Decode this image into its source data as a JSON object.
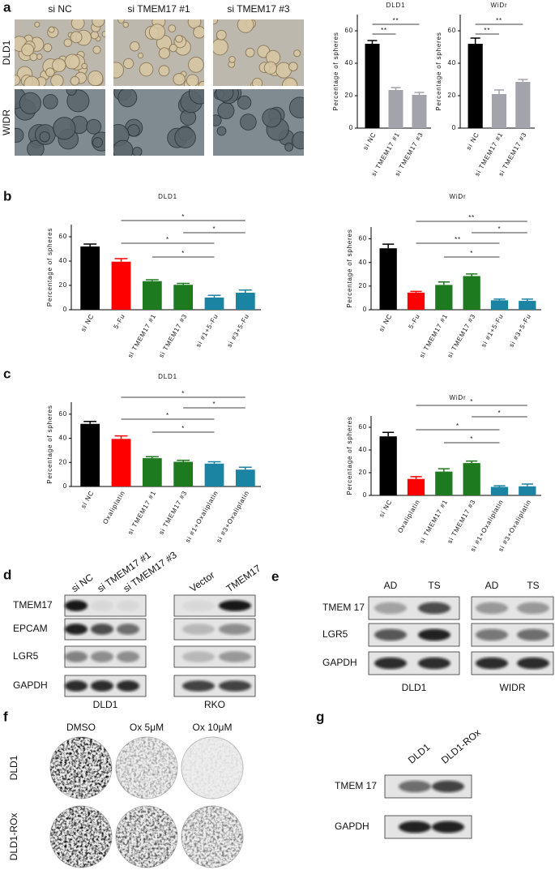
{
  "panel_labels": [
    "a",
    "b",
    "c",
    "d",
    "e",
    "f",
    "g"
  ],
  "panel_a_images": {
    "columns": [
      "si NC",
      "si TMEM17 #1",
      "si TMEM17 #3"
    ],
    "rows": [
      "DLD1",
      "WIDR"
    ]
  },
  "chart_data": [
    {
      "type": "bar",
      "title": "DLD1",
      "y_label": "Percentage of spheres",
      "categories": [
        "si NC",
        "si TMEM17 #1",
        "si TMEM17 #3"
      ],
      "values": [
        52,
        23.5,
        20.5
      ],
      "errors": [
        2,
        1.5,
        1.5
      ],
      "colors": [
        "#000000",
        "#a3a3ab",
        "#a3a3ab"
      ],
      "ylim": [
        0,
        70
      ],
      "yticks": [
        0,
        20,
        40,
        60
      ],
      "significance": [
        "**",
        "**"
      ]
    },
    {
      "type": "bar",
      "title": "WiDr",
      "y_label": "Percentage of spheres",
      "categories": [
        "si NC",
        "si TMEM17 #1",
        "si TMEM17 #3"
      ],
      "values": [
        52,
        21,
        28.5
      ],
      "errors": [
        3.5,
        2.5,
        1.5
      ],
      "colors": [
        "#000000",
        "#a3a3ab",
        "#a3a3ab"
      ],
      "ylim": [
        0,
        70
      ],
      "yticks": [
        0,
        20,
        40,
        60
      ],
      "significance": [
        "**",
        "**"
      ]
    },
    {
      "type": "bar",
      "title": "DLD1",
      "y_label": "Percentage of spheres",
      "categories": [
        "si NC",
        "5-Fu",
        "si TMEM17 #1",
        "si TMEM17 #3",
        "si #1+5-Fu",
        "si #3+5-Fu"
      ],
      "values": [
        52,
        39.5,
        23.5,
        20.5,
        10,
        14
      ],
      "errors": [
        2,
        2.5,
        1.2,
        1.2,
        1.8,
        2.2
      ],
      "colors": [
        "#000000",
        "#ff0000",
        "#1e7a1e",
        "#1e7a1e",
        "#1b84a3",
        "#1b84a3"
      ],
      "ylim": [
        0,
        70
      ],
      "yticks": [
        0,
        20,
        40,
        60
      ],
      "significance": [
        "*",
        "*",
        "*",
        "*"
      ]
    },
    {
      "type": "bar",
      "title": "WiDr",
      "y_label": "Percentage of spheres",
      "categories": [
        "si NC",
        "5-Fu",
        "si TMEM17 #1",
        "si TMEM17 #3",
        "si #1+5-Fu",
        "si #3+5-Fu"
      ],
      "values": [
        52,
        14.5,
        21,
        28.5,
        8,
        7.5
      ],
      "errors": [
        3.5,
        1,
        2.5,
        1.8,
        1,
        1.5
      ],
      "colors": [
        "#000000",
        "#ff0000",
        "#1e7a1e",
        "#1e7a1e",
        "#1b84a3",
        "#1b84a3"
      ],
      "ylim": [
        0,
        70
      ],
      "yticks": [
        0,
        20,
        40,
        60
      ],
      "significance": [
        "**",
        "*",
        "**",
        "*"
      ]
    },
    {
      "type": "bar",
      "title": "DLD1",
      "y_label": "Percentage of spheres",
      "categories": [
        "si NC",
        "Oxaliplatin",
        "si TMEM17 #1",
        "si TMEM17 #3",
        "si #1+Oxaliplatin",
        "si #3+Oxaliplatin"
      ],
      "values": [
        52,
        39.5,
        23.5,
        20.5,
        19,
        14
      ],
      "errors": [
        2,
        2.5,
        1.2,
        1.2,
        1.5,
        2
      ],
      "colors": [
        "#000000",
        "#ff0000",
        "#1e7a1e",
        "#1e7a1e",
        "#1b84a3",
        "#1b84a3"
      ],
      "ylim": [
        0,
        70
      ],
      "yticks": [
        0,
        20,
        40,
        60
      ],
      "significance": [
        "*",
        "*",
        "*",
        "*"
      ]
    },
    {
      "type": "bar",
      "title": "WiDr",
      "y_label": "Percentage of spheres",
      "categories": [
        "si NC",
        "Oxaliplatin",
        "si TMEM17 #1",
        "si TMEM17 #3",
        "si #1+Oxaliplatin",
        "si #3+Oxaliplatin"
      ],
      "values": [
        52,
        14.5,
        21,
        28.5,
        7.5,
        8
      ],
      "errors": [
        3.5,
        2,
        2.5,
        1.8,
        1,
        2
      ],
      "colors": [
        "#000000",
        "#ff0000",
        "#1e7a1e",
        "#1e7a1e",
        "#1b84a3",
        "#1b84a3"
      ],
      "ylim": [
        0,
        70
      ],
      "yticks": [
        0,
        20,
        40,
        60
      ],
      "significance": [
        "*",
        "*",
        "*",
        "*"
      ]
    }
  ],
  "panel_d": {
    "rows": [
      "TMEM17",
      "EPCAM",
      "LGR5",
      "GAPDH"
    ],
    "blots": [
      {
        "lanes": [
          "si NC",
          "si TMEM17 #1",
          "si TMEM17 #3"
        ],
        "cell_line": "DLD1"
      },
      {
        "lanes": [
          "Vector",
          "TMEM17"
        ],
        "cell_line": "RKO"
      }
    ]
  },
  "panel_e": {
    "rows": [
      "TMEM 17",
      "LGR5",
      "GAPDH"
    ],
    "blots": [
      {
        "lanes": [
          "AD",
          "TS"
        ],
        "cell_line": "DLD1"
      },
      {
        "lanes": [
          "AD",
          "TS"
        ],
        "cell_line": "WIDR"
      }
    ]
  },
  "panel_f": {
    "columns": [
      "DMSO",
      "Ox 5μM",
      "Ox 10μM"
    ],
    "rows": [
      "DLD1",
      "DLD1-ROx"
    ]
  },
  "panel_g": {
    "lanes": [
      "DLD1",
      "DLD1-ROx"
    ],
    "rows": [
      "TMEM 17",
      "GAPDH"
    ]
  }
}
